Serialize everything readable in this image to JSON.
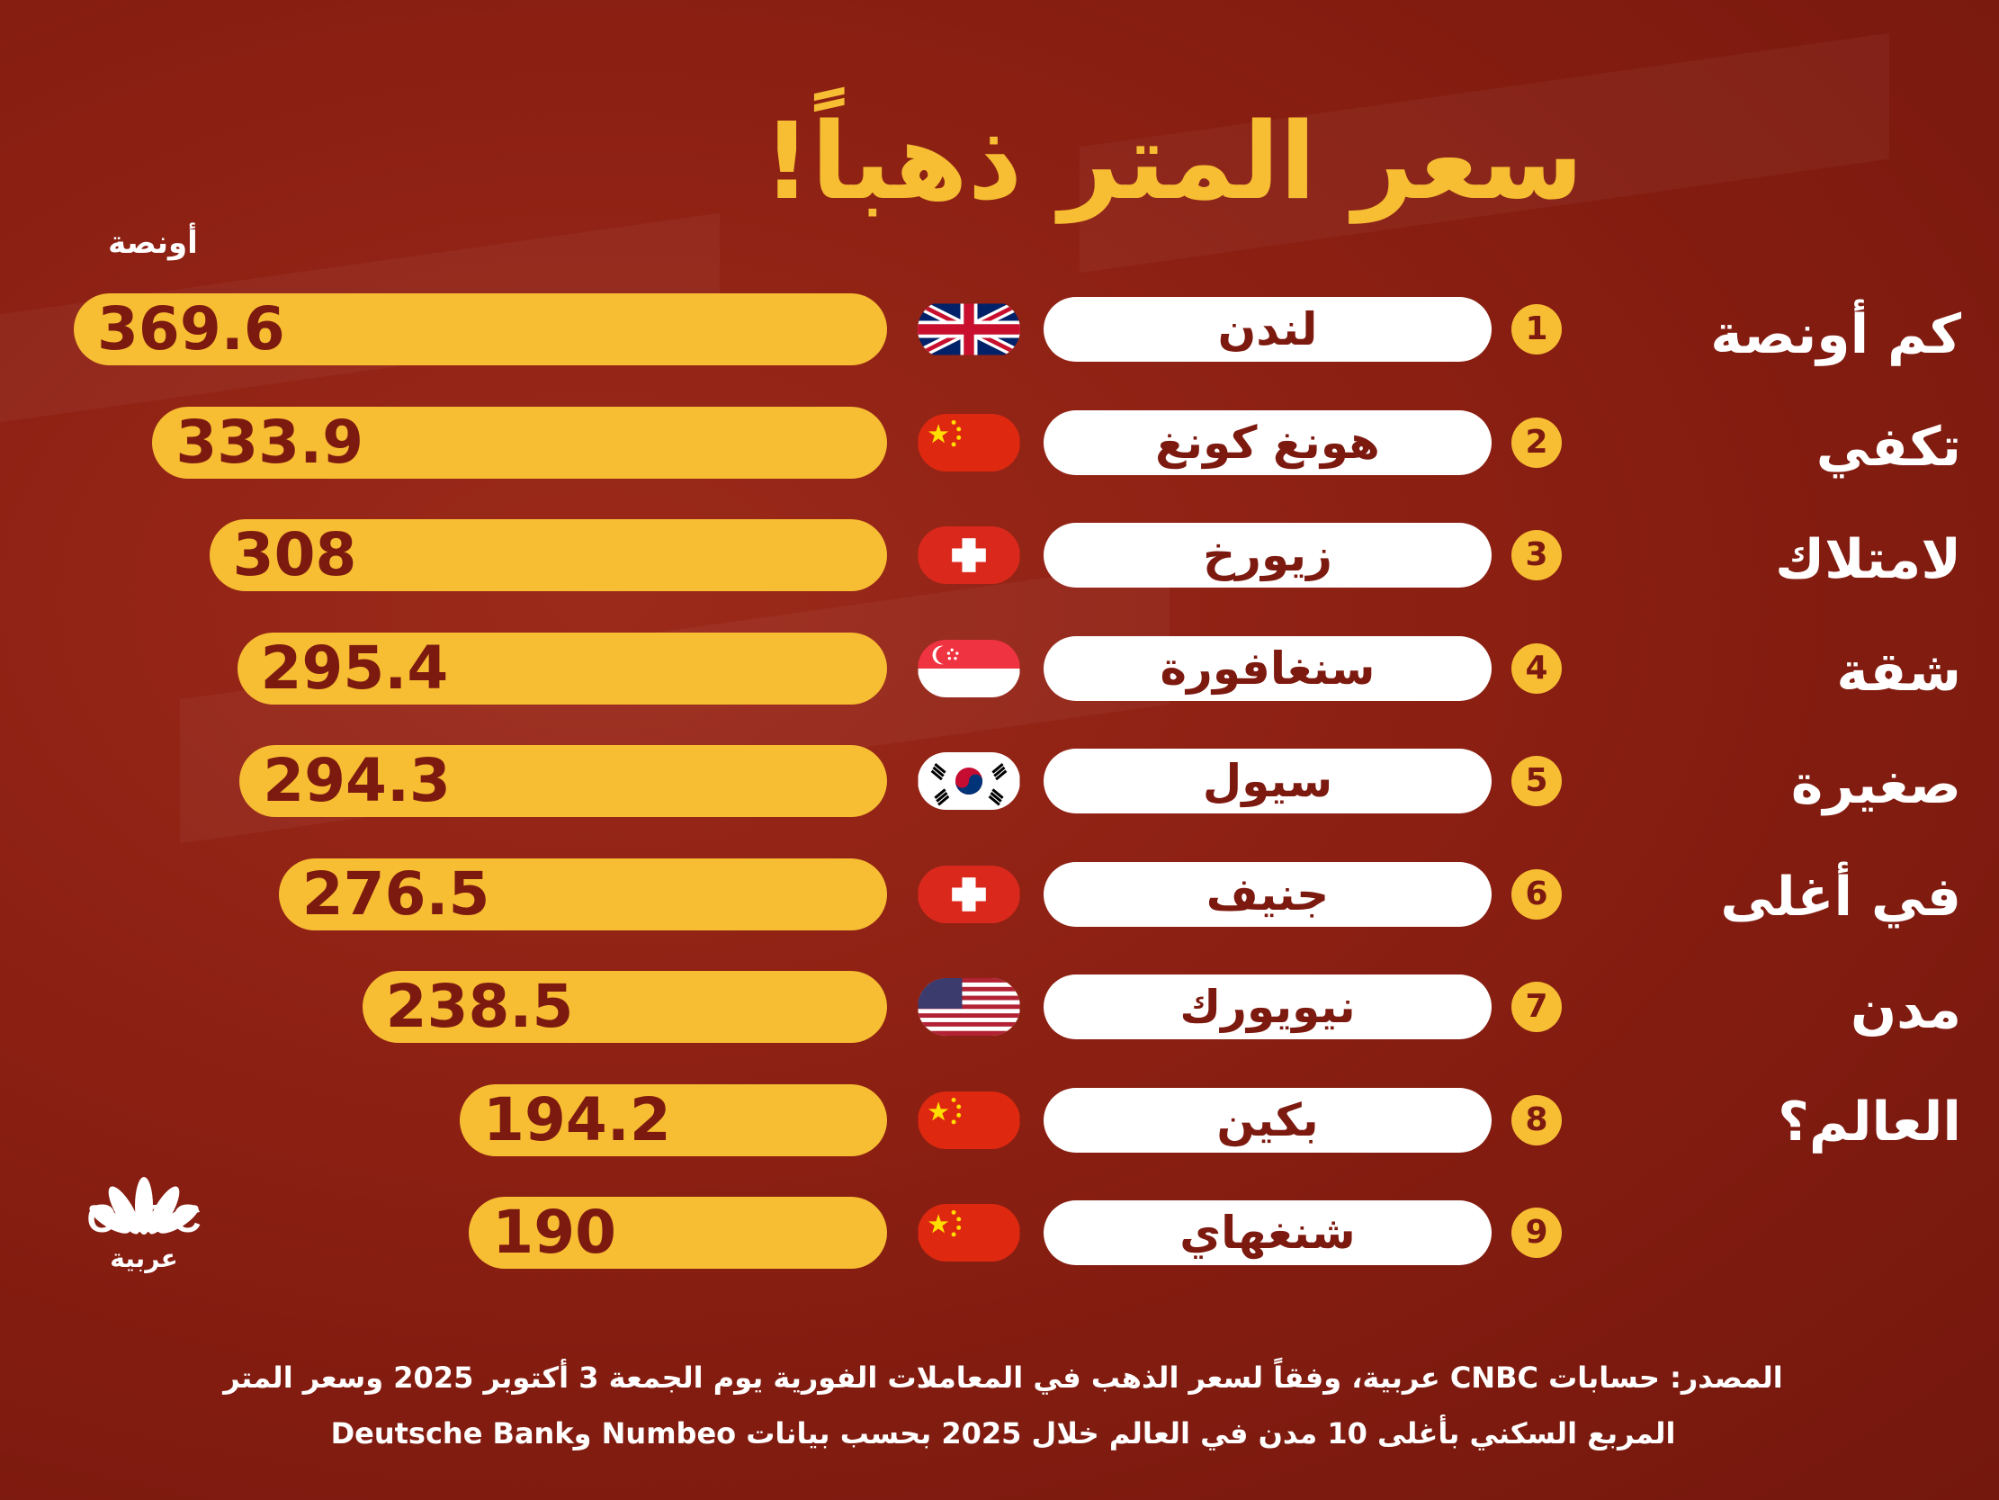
{
  "title": "سعر المتر ذهباً!",
  "unit_label": "أونصة",
  "side_text": [
    "كم أونصة",
    "تكفي",
    "لامتلاك",
    "شقة",
    "صغيرة",
    "في أغلى",
    "مدن",
    "العالم؟"
  ],
  "chart_data": {
    "type": "bar",
    "orientation": "horizontal",
    "title": "سعر المتر ذهباً!",
    "unit": "أونصة",
    "rows": [
      {
        "rank": "1",
        "city": "لندن",
        "value": 369.6,
        "label": "369.6",
        "flag": "uk-flag"
      },
      {
        "rank": "2",
        "city": "هونغ كونغ",
        "value": 333.9,
        "label": "333.9",
        "flag": "china-flag"
      },
      {
        "rank": "3",
        "city": "زيورخ",
        "value": 308,
        "label": "308",
        "flag": "switzerland-flag"
      },
      {
        "rank": "4",
        "city": "سنغافورة",
        "value": 295.4,
        "label": "295.4",
        "flag": "singapore-flag"
      },
      {
        "rank": "5",
        "city": "سيول",
        "value": 294.3,
        "label": "294.3",
        "flag": "south-korea-flag"
      },
      {
        "rank": "6",
        "city": "جنيف",
        "value": 276.5,
        "label": "276.5",
        "flag": "switzerland-flag"
      },
      {
        "rank": "7",
        "city": "نيويورك",
        "value": 238.5,
        "label": "238.5",
        "flag": "usa-flag"
      },
      {
        "rank": "8",
        "city": "بكين",
        "value": 194.2,
        "label": "194.2",
        "flag": "china-flag"
      },
      {
        "rank": "9",
        "city": "شنغهاي",
        "value": 190,
        "label": "190",
        "flag": "china-flag"
      }
    ]
  },
  "logo": {
    "name": "CNBC",
    "sub": "عربية"
  },
  "source": {
    "line1": "المصدر: حسابات CNBC عربية، وفقاً لسعر الذهب في المعاملات الفورية يوم الجمعة 3 أكتوبر 2025 وسعر المتر",
    "line2": "المربع السكني بأغلى 10 مدن في العالم خلال 2025 بحسب بيانات Numbeo وDeutsche Bank"
  },
  "colors": {
    "bar": "#f7bd33",
    "background": "#8a1f12",
    "text_dark": "#7d1a10",
    "pill": "#ffffff"
  }
}
